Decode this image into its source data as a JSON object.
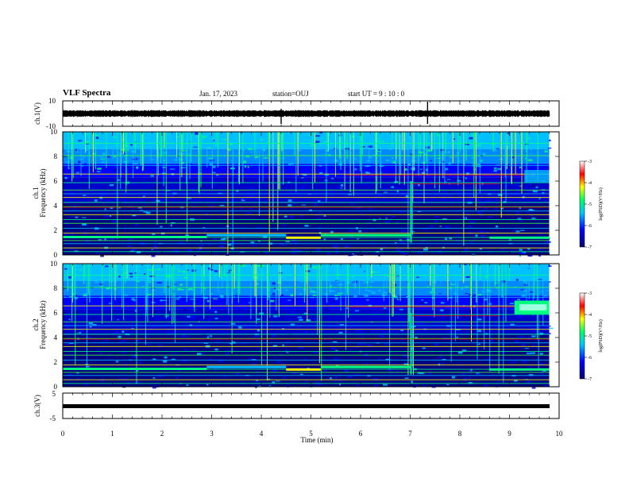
{
  "header": {
    "title": "VLF Spectra",
    "date": "Jan. 17, 2023",
    "station": "station=OUJ",
    "start": "start UT =  9 : 10 : 0"
  },
  "chart_data": [
    {
      "type": "line",
      "panel": "ch1-waveform",
      "ylabel": "ch.1(V)",
      "ylim": [
        -10,
        10
      ],
      "yticks": [
        "10",
        "-10"
      ],
      "xlim": [
        0,
        10
      ],
      "series": [
        {
          "values": "noise band, roughly 0 V with small amplitude (~±1 V), occasional spikes"
        }
      ]
    },
    {
      "type": "heatmap",
      "panel": "ch1-spectrogram",
      "ylabel": "ch.1 Frequency (kHz)",
      "ylim": [
        0,
        10
      ],
      "yticks": [
        "0",
        "2",
        "4",
        "6",
        "8",
        "10"
      ],
      "xlim": [
        0,
        10
      ],
      "colorbar": {
        "label": "log(PSD)(V²/Hz)",
        "range": [
          -7,
          -3
        ],
        "ticks": [
          "-3",
          "-4",
          "-5",
          "-6",
          "-7"
        ]
      }
    },
    {
      "type": "heatmap",
      "panel": "ch2-spectrogram",
      "ylabel": "ch.2 Frequency (kHz)",
      "ylim": [
        0,
        10
      ],
      "yticks": [
        "0",
        "2",
        "4",
        "6",
        "8",
        "10"
      ],
      "xlim": [
        0,
        10
      ],
      "colorbar": {
        "label": "log(PSD)(V²/Hz)",
        "range": [
          -7,
          -3
        ],
        "ticks": [
          "-3",
          "-4",
          "-5",
          "-6",
          "-7"
        ]
      }
    },
    {
      "type": "line",
      "panel": "ch3-waveform",
      "ylabel": "ch.3(V)",
      "ylim": [
        -5,
        5
      ],
      "yticks": [
        "5",
        "-5"
      ],
      "xlim": [
        0,
        10
      ],
      "xlabel": "Time (min)",
      "xticks": [
        "0",
        "1",
        "2",
        "3",
        "4",
        "5",
        "6",
        "7",
        "8",
        "9",
        "10"
      ],
      "series": [
        {
          "values": "constant at about -1 V over 0 to 9.8 min"
        }
      ]
    }
  ],
  "colors": {
    "colormap": [
      "#000080",
      "#0000ff",
      "#00c0ff",
      "#00ff80",
      "#ffff00",
      "#ff0000",
      "#ffffff"
    ],
    "line": "#000000"
  }
}
